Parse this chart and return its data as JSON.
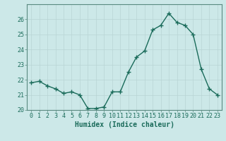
{
  "title": "",
  "xlabel": "Humidex (Indice chaleur)",
  "ylabel": "",
  "x": [
    0,
    1,
    2,
    3,
    4,
    5,
    6,
    7,
    8,
    9,
    10,
    11,
    12,
    13,
    14,
    15,
    16,
    17,
    18,
    19,
    20,
    21,
    22,
    23
  ],
  "y": [
    21.8,
    21.9,
    21.6,
    21.4,
    21.1,
    21.2,
    21.0,
    20.1,
    20.1,
    20.2,
    21.2,
    21.2,
    22.5,
    23.5,
    23.9,
    25.3,
    25.6,
    26.4,
    25.8,
    25.6,
    25.0,
    22.7,
    21.4,
    21.0
  ],
  "line_color": "#1a6b5a",
  "marker": "+",
  "markersize": 4,
  "linewidth": 1.0,
  "bg_color": "#cce8e8",
  "grid_color": "#b8d4d4",
  "tick_color": "#1a6b5a",
  "label_color": "#1a6b5a",
  "spine_color": "#5a8a80",
  "ylim": [
    20,
    27
  ],
  "yticks": [
    20,
    21,
    22,
    23,
    24,
    25,
    26
  ],
  "xlim": [
    -0.5,
    23.5
  ],
  "label_fontsize": 7,
  "tick_fontsize": 6
}
